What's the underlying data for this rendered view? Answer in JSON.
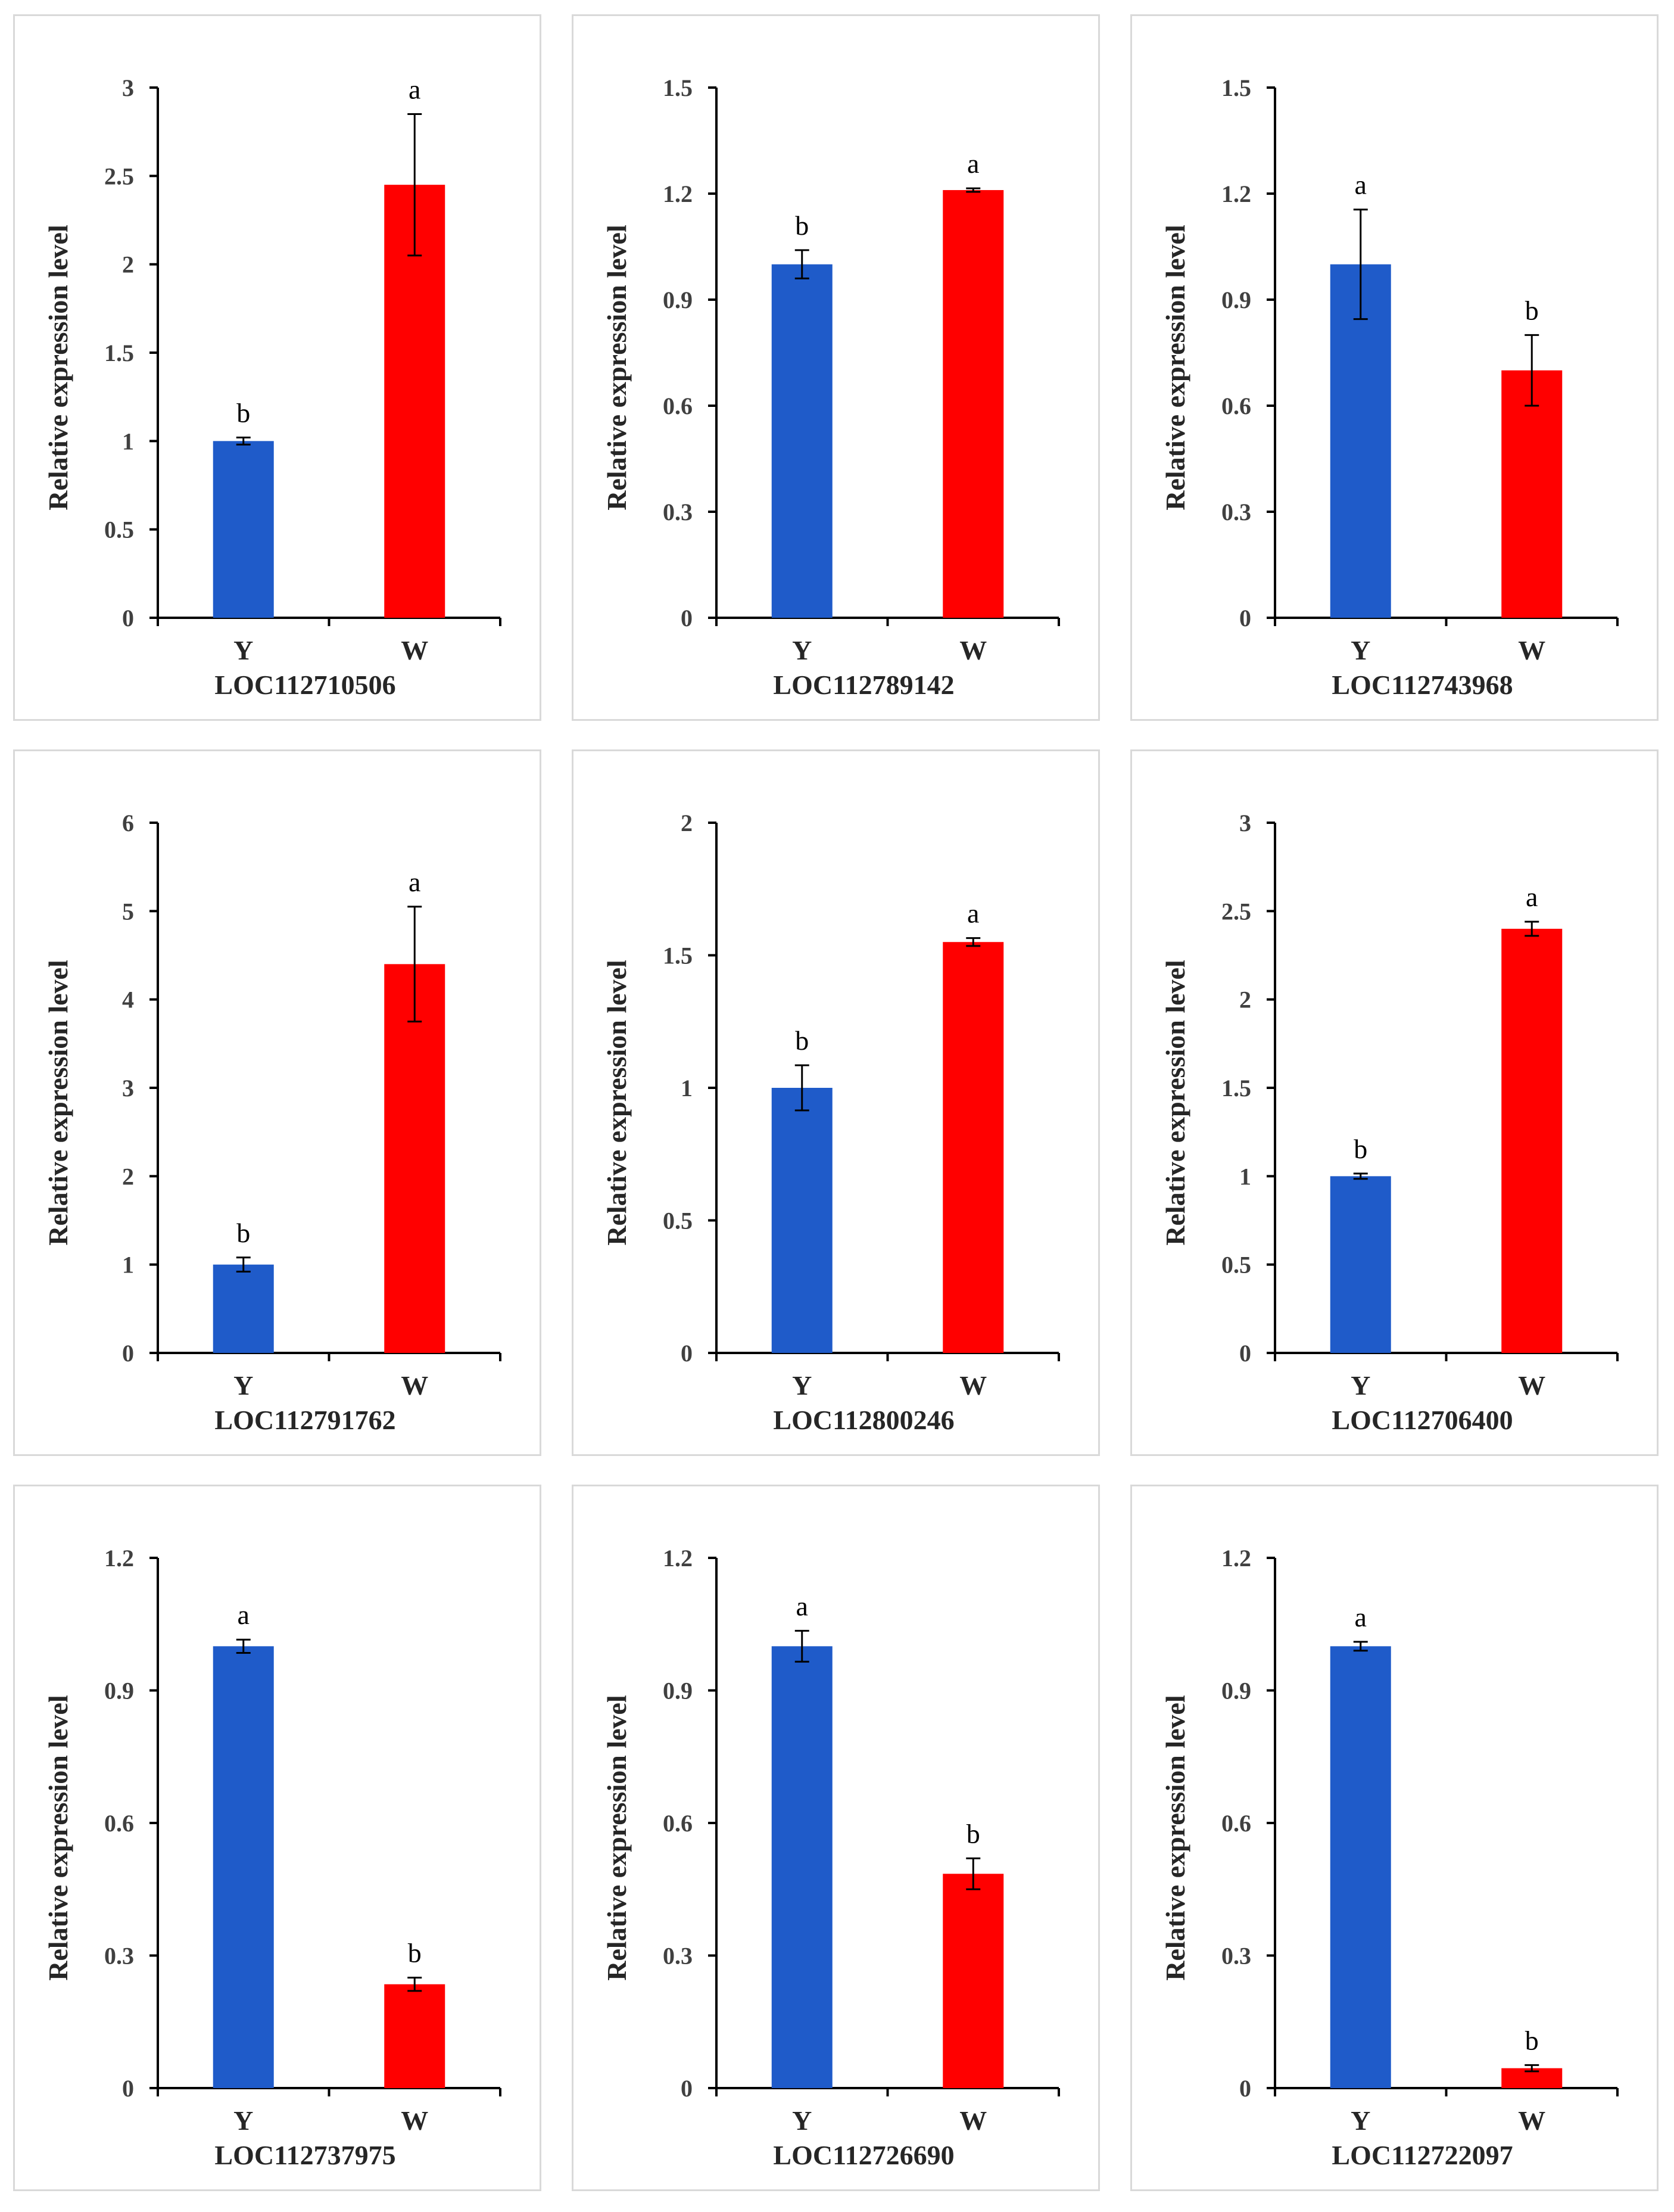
{
  "ylabel": "Relative expression level",
  "colors": {
    "Y": "#1f5bc9",
    "W": "#ff0000"
  },
  "chart_data": [
    {
      "type": "bar",
      "title": "LOC112710506",
      "categories": [
        "Y",
        "W"
      ],
      "values": [
        1.0,
        2.45
      ],
      "errors": [
        0.02,
        0.4
      ],
      "letters": [
        "b",
        "a"
      ],
      "ylim": [
        0,
        3
      ],
      "yticks": [
        "0",
        "0.5",
        "1",
        "1.5",
        "2",
        "2.5",
        "3"
      ],
      "ylabel": "Relative expression level"
    },
    {
      "type": "bar",
      "title": "LOC112789142",
      "categories": [
        "Y",
        "W"
      ],
      "values": [
        1.0,
        1.21
      ],
      "errors": [
        0.04,
        0.005
      ],
      "letters": [
        "b",
        "a"
      ],
      "ylim": [
        0,
        1.5
      ],
      "yticks": [
        "0",
        "0.3",
        "0.6",
        "0.9",
        "1.2",
        "1.5"
      ],
      "ylabel": "Relative expression level"
    },
    {
      "type": "bar",
      "title": "LOC112743968",
      "categories": [
        "Y",
        "W"
      ],
      "values": [
        1.0,
        0.7
      ],
      "errors": [
        0.155,
        0.1
      ],
      "letters": [
        "a",
        "b"
      ],
      "ylim": [
        0,
        1.5
      ],
      "yticks": [
        "0",
        "0.3",
        "0.6",
        "0.9",
        "1.2",
        "1.5"
      ],
      "ylabel": "Relative expression level"
    },
    {
      "type": "bar",
      "title": "LOC112791762",
      "categories": [
        "Y",
        "W"
      ],
      "values": [
        1.0,
        4.4
      ],
      "errors": [
        0.08,
        0.65
      ],
      "letters": [
        "b",
        "a"
      ],
      "ylim": [
        0,
        6
      ],
      "yticks": [
        "0",
        "1",
        "2",
        "3",
        "4",
        "5",
        "6"
      ],
      "ylabel": "Relative expression level"
    },
    {
      "type": "bar",
      "title": "LOC112800246",
      "categories": [
        "Y",
        "W"
      ],
      "values": [
        1.0,
        1.55
      ],
      "errors": [
        0.085,
        0.015
      ],
      "letters": [
        "b",
        "a"
      ],
      "ylim": [
        0,
        2
      ],
      "yticks": [
        "0",
        "0.5",
        "1",
        "1.5",
        "2"
      ],
      "ylabel": "Relative expression level"
    },
    {
      "type": "bar",
      "title": "LOC112706400",
      "categories": [
        "Y",
        "W"
      ],
      "values": [
        1.0,
        2.4
      ],
      "errors": [
        0.015,
        0.04
      ],
      "letters": [
        "b",
        "a"
      ],
      "ylim": [
        0,
        3
      ],
      "yticks": [
        "0",
        "0.5",
        "1",
        "1.5",
        "2",
        "2.5",
        "3"
      ],
      "ylabel": "Relative expression level"
    },
    {
      "type": "bar",
      "title": "LOC112737975",
      "categories": [
        "Y",
        "W"
      ],
      "values": [
        1.0,
        0.235
      ],
      "errors": [
        0.015,
        0.015
      ],
      "letters": [
        "a",
        "b"
      ],
      "ylim": [
        0,
        1.2
      ],
      "yticks": [
        "0",
        "0.3",
        "0.6",
        "0.9",
        "1.2"
      ],
      "ylabel": "Relative expression level"
    },
    {
      "type": "bar",
      "title": "LOC112726690",
      "categories": [
        "Y",
        "W"
      ],
      "values": [
        1.0,
        0.485
      ],
      "errors": [
        0.035,
        0.035
      ],
      "letters": [
        "a",
        "b"
      ],
      "ylim": [
        0,
        1.2
      ],
      "yticks": [
        "0",
        "0.3",
        "0.6",
        "0.9",
        "1.2"
      ],
      "ylabel": "Relative expression level"
    },
    {
      "type": "bar",
      "title": "LOC112722097",
      "categories": [
        "Y",
        "W"
      ],
      "values": [
        1.0,
        0.045
      ],
      "errors": [
        0.01,
        0.007
      ],
      "letters": [
        "a",
        "b"
      ],
      "ylim": [
        0,
        1.2
      ],
      "yticks": [
        "0",
        "0.3",
        "0.6",
        "0.9",
        "1.2"
      ],
      "ylabel": "Relative expression level"
    }
  ]
}
